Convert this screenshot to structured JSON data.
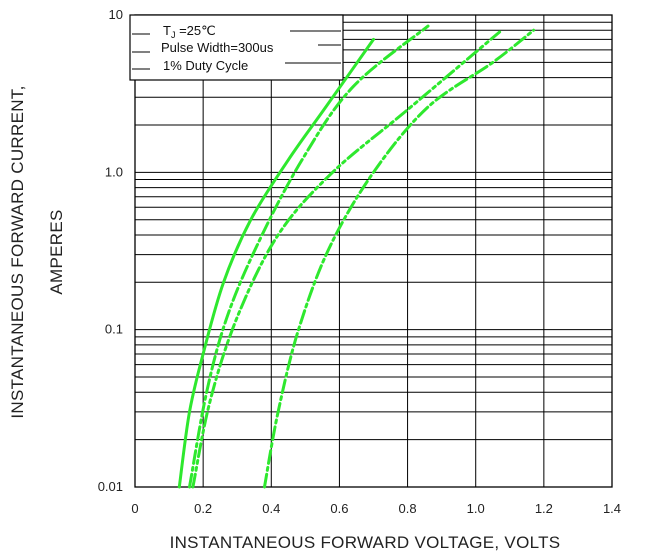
{
  "chart_data": {
    "type": "line",
    "x_scale": "linear",
    "y_scale": "log",
    "xlim": [
      0,
      1.4
    ],
    "ylim": [
      0.01,
      10
    ],
    "x_ticks": [
      "0",
      "0.2",
      "0.4",
      "0.6",
      "0.8",
      "1.0",
      "1.2",
      "1.4"
    ],
    "y_ticks": [
      "0.01",
      "0.1",
      "1.0",
      "10"
    ],
    "xlabel": "INSTANTANEOUS FORWARD VOLTAGE, VOLTS",
    "ylabel_line1": "INSTANTANEOUS FORWARD CURRENT,",
    "ylabel_line2": "AMPERES",
    "grid": true,
    "legend_position": "top-left",
    "annotation": {
      "tj_symbol": "T",
      "tj_subscript": "J",
      "tj_value": " =25℃",
      "pulse_width": "Pulse Width=300us",
      "duty_cycle": "1% Duty Cycle"
    },
    "line_color": "#2ee82e",
    "series": [
      {
        "style": "solid",
        "points": [
          [
            0.13,
            0.01
          ],
          [
            0.16,
            0.03
          ],
          [
            0.2,
            0.07
          ],
          [
            0.26,
            0.2
          ],
          [
            0.34,
            0.5
          ],
          [
            0.45,
            1.2
          ],
          [
            0.56,
            2.6
          ],
          [
            0.7,
            7.0
          ]
        ]
      },
      {
        "style": "dash-dot",
        "points": [
          [
            0.16,
            0.01
          ],
          [
            0.21,
            0.04
          ],
          [
            0.27,
            0.12
          ],
          [
            0.36,
            0.35
          ],
          [
            0.49,
            1.2
          ],
          [
            0.64,
            3.5
          ],
          [
            0.86,
            8.5
          ]
        ]
      },
      {
        "style": "dash-dot-dot",
        "points": [
          [
            0.17,
            0.01
          ],
          [
            0.22,
            0.035
          ],
          [
            0.3,
            0.12
          ],
          [
            0.42,
            0.4
          ],
          [
            0.58,
            1.0
          ],
          [
            0.8,
            2.5
          ],
          [
            1.07,
            7.8
          ]
        ]
      },
      {
        "style": "dash-dot",
        "points": [
          [
            0.38,
            0.01
          ],
          [
            0.42,
            0.03
          ],
          [
            0.48,
            0.1
          ],
          [
            0.57,
            0.33
          ],
          [
            0.7,
            1.0
          ],
          [
            0.86,
            2.6
          ],
          [
            1.05,
            5.0
          ],
          [
            1.17,
            8.0
          ]
        ]
      }
    ]
  }
}
